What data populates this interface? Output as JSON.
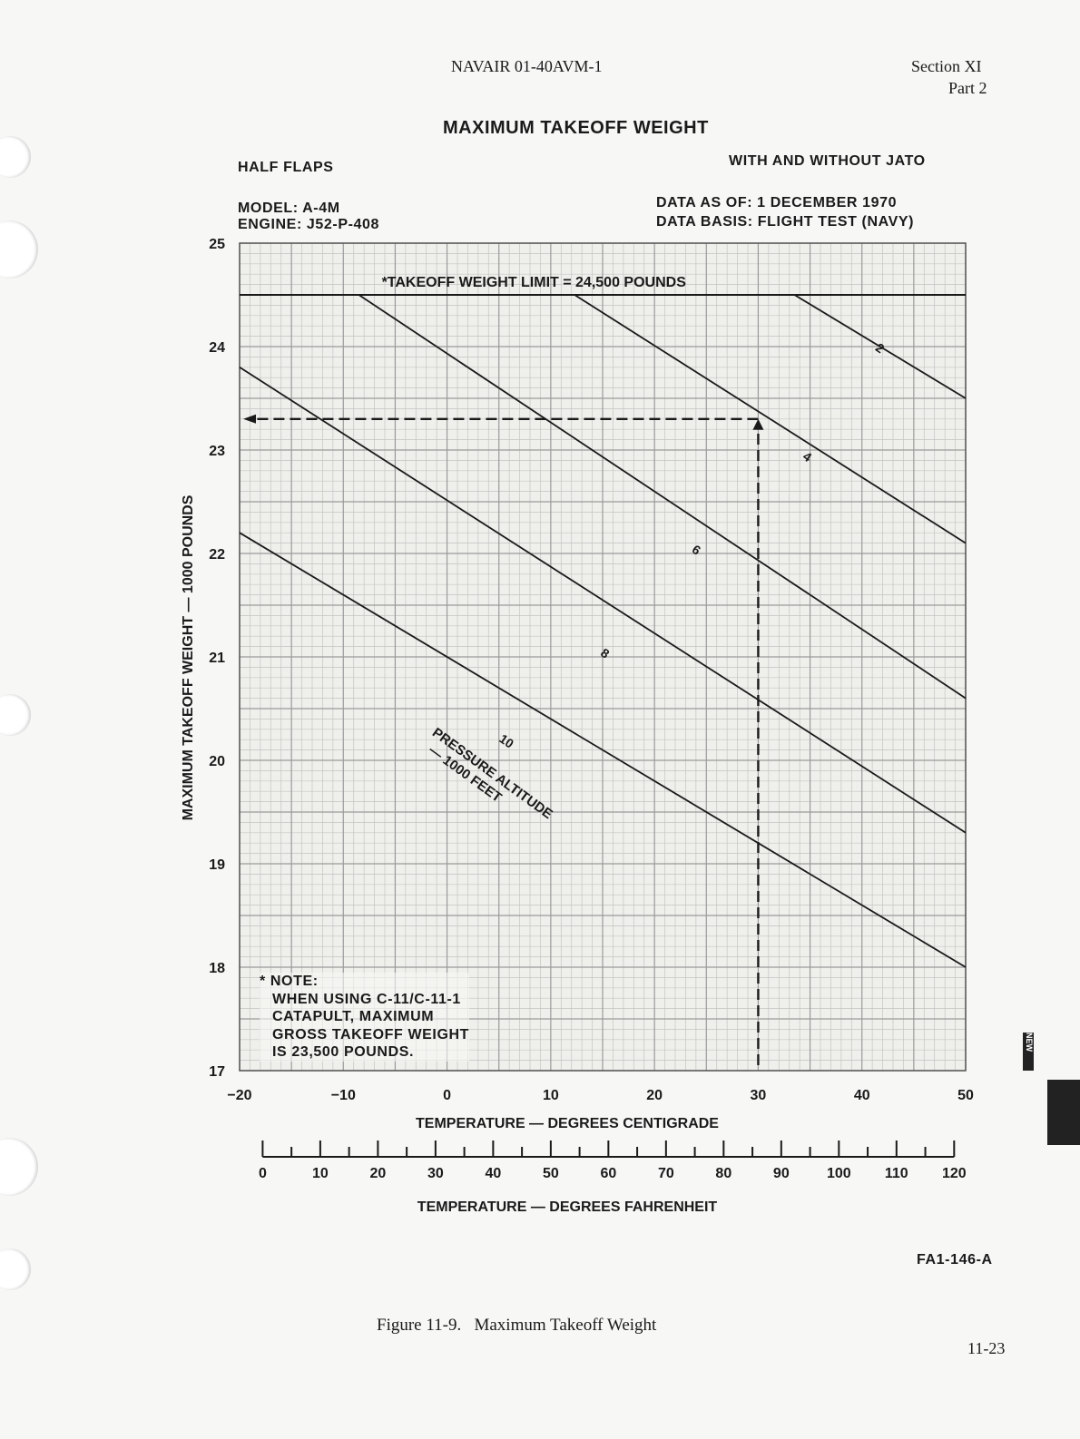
{
  "header": {
    "doc_number": "NAVAIR 01-40AVM-1",
    "section": "Section XI",
    "part": "Part 2"
  },
  "chart_info": {
    "flaps": "HALF FLAPS",
    "jato": "WITH AND WITHOUT JATO",
    "model": "MODEL: A-4M",
    "engine": "ENGINE: J52-P-408",
    "data_as_of": "DATA AS OF: 1 DECEMBER 1970",
    "data_basis": "DATA BASIS: FLIGHT TEST (NAVY)"
  },
  "chart_data": {
    "type": "line",
    "title": "MAXIMUM TAKEOFF WEIGHT",
    "xlabel": "TEMPERATURE — DEGREES CENTIGRADE",
    "x2label": "TEMPERATURE — DEGREES FAHRENHEIT",
    "ylabel": "MAXIMUM TAKEOFF WEIGHT — 1000 POUNDS",
    "xlim": [
      -20,
      50
    ],
    "ylim": [
      17,
      25
    ],
    "x_ticks": [
      "−20",
      "−10",
      "0",
      "10",
      "20",
      "30",
      "40",
      "50"
    ],
    "y_ticks": [
      "17",
      "18",
      "19",
      "20",
      "21",
      "22",
      "23",
      "24",
      "25"
    ],
    "x_tick_values": [
      -20,
      -10,
      0,
      10,
      20,
      30,
      40,
      50
    ],
    "y_tick_values": [
      17,
      18,
      19,
      20,
      21,
      22,
      23,
      24,
      25
    ],
    "f_ticks": [
      "0",
      "10",
      "20",
      "30",
      "40",
      "50",
      "60",
      "70",
      "80",
      "90",
      "100",
      "110",
      "120"
    ],
    "f_tick_values": [
      0,
      10,
      20,
      30,
      40,
      50,
      60,
      70,
      80,
      90,
      100,
      110,
      120
    ],
    "grid": true,
    "limit_line": {
      "y": 24.5,
      "label": "*TAKEOFF WEIGHT LIMIT = 24,500 POUNDS"
    },
    "family_label": "PRESSURE ALTITUDE — 1000 FEET",
    "series": [
      {
        "name": "2",
        "x": [
          33.5,
          50
        ],
        "y": [
          24.5,
          23.5
        ]
      },
      {
        "name": "4",
        "x": [
          12.3,
          50
        ],
        "y": [
          24.5,
          22.1
        ]
      },
      {
        "name": "6",
        "x": [
          -8.5,
          50
        ],
        "y": [
          24.5,
          20.6
        ]
      },
      {
        "name": "8",
        "x": [
          -20,
          50
        ],
        "y": [
          23.8,
          19.3
        ]
      },
      {
        "name": "10",
        "x": [
          -20,
          50
        ],
        "y": [
          22.2,
          18.0
        ]
      }
    ],
    "example": {
      "temp_c": 30,
      "pressure_altitude": "4",
      "weight": 23.3
    },
    "note": [
      "* NOTE:",
      "WHEN USING C-11/C-11-1",
      "CATAPULT, MAXIMUM",
      "GROSS TAKEOFF WEIGHT",
      "IS 23,500 POUNDS."
    ]
  },
  "figure_id": "FA1-146-A",
  "caption": "Figure 11-9.   Maximum Takeoff Weight",
  "page_number": "11-23",
  "side_tag": "NEW"
}
